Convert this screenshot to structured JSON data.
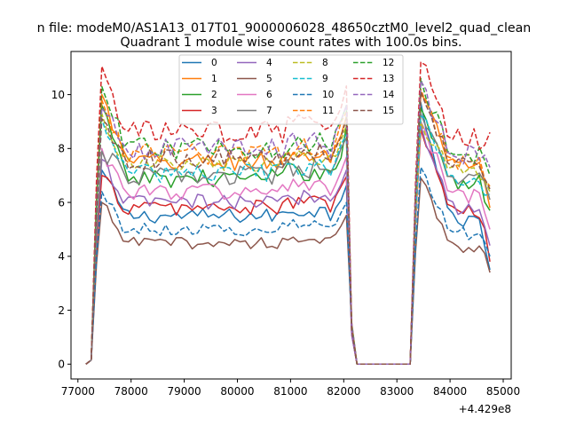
{
  "suptitle": "n file: modeM0/AS1A13_017T01_9000006028_48650cztM0_level2_quad_clean",
  "chart_data": {
    "type": "line",
    "title": "Quadrant 1 module wise count rates with 100.0s bins.",
    "xlabel": "",
    "ylabel": "",
    "x_offset_label": "+4.429e8",
    "xlim": [
      76870,
      85150
    ],
    "ylim": [
      -0.55,
      11.6
    ],
    "xticks": [
      77000,
      78000,
      79000,
      80000,
      81000,
      82000,
      83000,
      84000,
      85000
    ],
    "xtick_labels": [
      "77000",
      "78000",
      "79000",
      "80000",
      "81000",
      "82000",
      "83000",
      "84000",
      "85000"
    ],
    "yticks": [
      0,
      2,
      4,
      6,
      8,
      10
    ],
    "ytick_labels": [
      "0",
      "2",
      "4",
      "6",
      "8",
      "10"
    ],
    "grid": false,
    "legend_placement": "upper-center",
    "legend_columns": 4,
    "x_range": {
      "start": 77150,
      "end": 84750,
      "step": 100
    },
    "gap": {
      "start": 82250,
      "end": 83250
    },
    "series": [
      {
        "name": "0",
        "color": "#1f77b4",
        "dash": "solid",
        "ramp": 7.2,
        "level": 5.5,
        "peak2": 9.7,
        "end": 3.5
      },
      {
        "name": "1",
        "color": "#ff7f0e",
        "dash": "solid",
        "ramp": 10.0,
        "level": 7.5,
        "peak2": 10.0,
        "end": 5.8
      },
      {
        "name": "2",
        "color": "#2ca02c",
        "dash": "solid",
        "ramp": 9.6,
        "level": 6.9,
        "peak2": 9.5,
        "end": 5.7
      },
      {
        "name": "3",
        "color": "#d62728",
        "dash": "solid",
        "ramp": 7.0,
        "level": 5.8,
        "peak2": 8.7,
        "end": 3.8
      },
      {
        "name": "4",
        "color": "#9467bd",
        "dash": "solid",
        "ramp": 7.6,
        "level": 6.0,
        "peak2": 8.9,
        "end": 4.4
      },
      {
        "name": "5",
        "color": "#8c564b",
        "dash": "solid",
        "ramp": 6.0,
        "level": 4.5,
        "peak2": 6.9,
        "end": 3.4
      },
      {
        "name": "6",
        "color": "#e377c2",
        "dash": "solid",
        "ramp": 8.0,
        "level": 6.4,
        "peak2": 9.0,
        "end": 5.0
      },
      {
        "name": "7",
        "color": "#7f7f7f",
        "dash": "solid",
        "ramp": 7.9,
        "level": 7.0,
        "peak2": 9.3,
        "end": 6.1
      },
      {
        "name": "8",
        "color": "#bcbd22",
        "dash": "dashed",
        "ramp": 9.3,
        "level": 7.4,
        "peak2": 9.0,
        "end": 6.4
      },
      {
        "name": "9",
        "color": "#17becf",
        "dash": "dashed",
        "ramp": 9.1,
        "level": 7.1,
        "peak2": 9.2,
        "end": 6.3
      },
      {
        "name": "10",
        "color": "#1f77b4",
        "dash": "dashed",
        "ramp": 6.4,
        "level": 5.0,
        "peak2": 7.3,
        "end": 4.0
      },
      {
        "name": "11",
        "color": "#ff7f0e",
        "dash": "dashed",
        "ramp": 9.8,
        "level": 7.8,
        "peak2": 10.2,
        "end": 6.6
      },
      {
        "name": "12",
        "color": "#2ca02c",
        "dash": "dashed",
        "ramp": 10.3,
        "level": 8.0,
        "peak2": 10.6,
        "end": 7.0
      },
      {
        "name": "13",
        "color": "#d62728",
        "dash": "dashed",
        "ramp": 11.05,
        "level": 8.6,
        "peak2": 11.2,
        "end": 8.6
      },
      {
        "name": "14",
        "color": "#9467bd",
        "dash": "dashed",
        "ramp": 9.5,
        "level": 8.0,
        "peak2": 10.5,
        "end": 7.3
      },
      {
        "name": "15",
        "color": "#8c564b",
        "dash": "dashed",
        "ramp": 9.1,
        "level": 7.6,
        "peak2": 10.1,
        "end": 6.5
      }
    ]
  }
}
